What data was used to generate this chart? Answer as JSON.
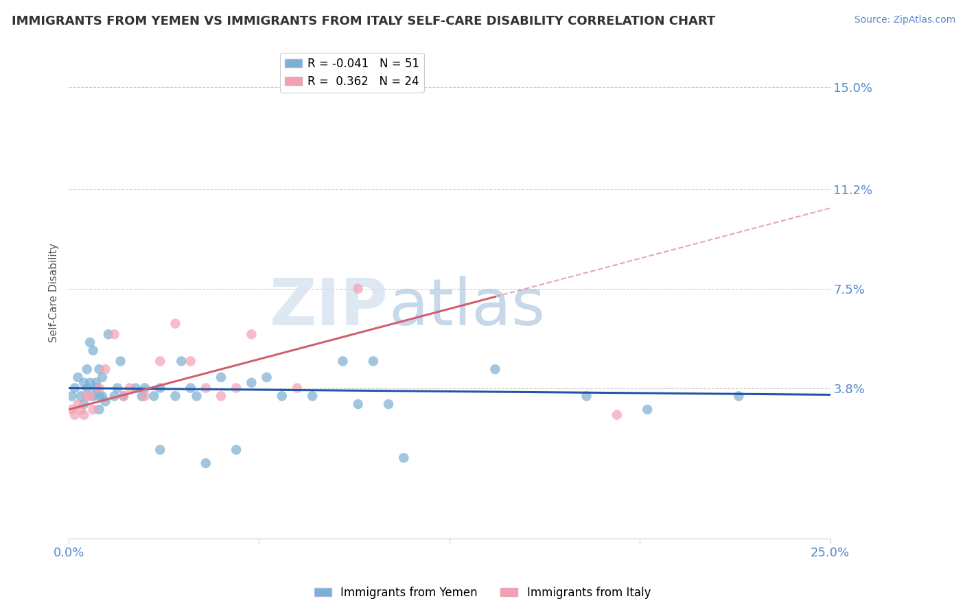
{
  "title": "IMMIGRANTS FROM YEMEN VS IMMIGRANTS FROM ITALY SELF-CARE DISABILITY CORRELATION CHART",
  "source": "Source: ZipAtlas.com",
  "ylabel": "Self-Care Disability",
  "xlim": [
    0.0,
    25.0
  ],
  "ylim": [
    -1.8,
    16.5
  ],
  "yticks": [
    3.8,
    7.5,
    11.2,
    15.0
  ],
  "xticks": [
    0.0,
    6.25,
    12.5,
    18.75,
    25.0
  ],
  "xtick_labels": [
    "0.0%",
    "",
    "",
    "",
    "25.0%"
  ],
  "ytick_labels": [
    "3.8%",
    "7.5%",
    "11.2%",
    "15.0%"
  ],
  "blue_label": "Immigrants from Yemen",
  "pink_label": "Immigrants from Italy",
  "blue_R": -0.041,
  "blue_N": 51,
  "pink_R": 0.362,
  "pink_N": 24,
  "blue_color": "#7bafd4",
  "pink_color": "#f4a0b0",
  "blue_line_color": "#2255aa",
  "pink_line_color": "#d06070",
  "watermark_zip": "ZIP",
  "watermark_atlas": "atlas",
  "background_color": "#ffffff",
  "grid_color": "#cccccc",
  "title_color": "#333333",
  "axis_label_color": "#5588cc",
  "blue_x": [
    0.1,
    0.2,
    0.3,
    0.4,
    0.5,
    0.5,
    0.6,
    0.6,
    0.7,
    0.7,
    0.8,
    0.8,
    0.9,
    0.9,
    1.0,
    1.0,
    1.0,
    1.1,
    1.1,
    1.2,
    1.3,
    1.5,
    1.6,
    1.7,
    1.8,
    2.2,
    2.4,
    2.5,
    2.8,
    3.0,
    3.0,
    3.5,
    4.0,
    4.5,
    5.0,
    5.5,
    6.0,
    6.5,
    7.0,
    8.0,
    9.0,
    10.0,
    10.5,
    11.0,
    14.0,
    17.0,
    19.0,
    22.0,
    3.7,
    9.5,
    4.2
  ],
  "blue_y": [
    3.5,
    3.8,
    4.2,
    3.5,
    3.2,
    4.0,
    4.5,
    3.8,
    5.5,
    4.0,
    3.5,
    5.2,
    3.8,
    4.0,
    3.5,
    4.5,
    3.0,
    3.5,
    4.2,
    3.3,
    5.8,
    3.5,
    3.8,
    4.8,
    3.5,
    3.8,
    3.5,
    3.8,
    3.5,
    3.8,
    1.5,
    3.5,
    3.8,
    1.0,
    4.2,
    1.5,
    4.0,
    4.2,
    3.5,
    3.5,
    4.8,
    4.8,
    3.2,
    1.2,
    4.5,
    3.5,
    3.0,
    3.5,
    4.8,
    3.2,
    3.5
  ],
  "pink_x": [
    0.1,
    0.2,
    0.3,
    0.4,
    0.5,
    0.6,
    0.7,
    0.8,
    1.0,
    1.2,
    1.5,
    1.8,
    2.0,
    2.5,
    3.0,
    3.5,
    4.0,
    4.5,
    5.0,
    5.5,
    6.0,
    7.5,
    9.5,
    18.0
  ],
  "pink_y": [
    3.0,
    2.8,
    3.2,
    3.0,
    2.8,
    3.5,
    3.5,
    3.0,
    3.8,
    4.5,
    5.8,
    3.5,
    3.8,
    3.5,
    4.8,
    6.2,
    4.8,
    3.8,
    3.5,
    3.8,
    5.8,
    3.8,
    7.5,
    2.8
  ],
  "pink_line_x0": 0.0,
  "pink_line_y0": 3.0,
  "pink_line_x1": 14.0,
  "pink_line_y1": 7.2,
  "pink_dash_x0": 14.0,
  "pink_dash_y0": 7.2,
  "pink_dash_x1": 25.0,
  "pink_dash_y1": 10.5,
  "blue_line_x0": 0.0,
  "blue_line_y0": 3.8,
  "blue_line_x1": 25.0,
  "blue_line_y1": 3.55,
  "figsize": [
    14.06,
    8.92
  ],
  "dpi": 100
}
